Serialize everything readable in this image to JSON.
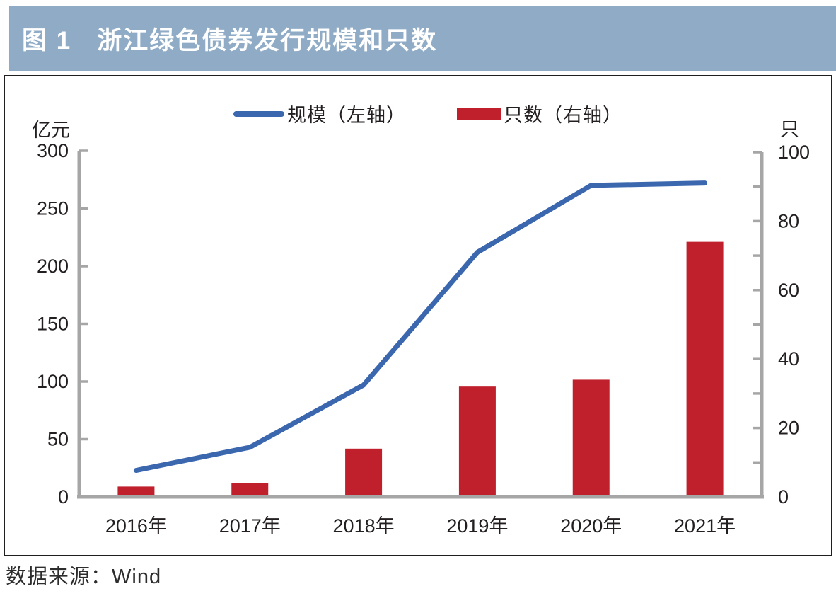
{
  "header": {
    "figure_label": "图 1",
    "title": "浙江绿色债券发行规模和只数"
  },
  "legend": {
    "items": [
      {
        "label": "规模（左轴）",
        "swatch": "line",
        "color": "#3b67af"
      },
      {
        "label": "只数（右轴）",
        "swatch": "bar",
        "color": "#c0202c"
      }
    ]
  },
  "chart_data": {
    "type": "line+bar dual-axis combo",
    "categories": [
      "2016年",
      "2017年",
      "2018年",
      "2019年",
      "2020年",
      "2021年"
    ],
    "series": [
      {
        "name": "规模（左轴）",
        "type": "line",
        "axis": "left",
        "color": "#3b67af",
        "values": [
          23,
          43,
          97,
          212,
          270,
          272
        ]
      },
      {
        "name": "只数（右轴）",
        "type": "bar",
        "axis": "right",
        "color": "#c0202c",
        "values": [
          3,
          4,
          14,
          32,
          34,
          74
        ]
      }
    ],
    "left_axis": {
      "unit": "亿元",
      "min": 0,
      "max": 300,
      "tick_step": 50,
      "label_step": 50
    },
    "right_axis": {
      "unit": "只",
      "min": 0,
      "max": 100,
      "tick_step": 10,
      "label_step": 20
    },
    "grid": false,
    "legend_position": "top-center",
    "axis_color": "#a6a6a6",
    "text_color": "#231f20"
  },
  "source": "数据来源：Wind",
  "colors": {
    "header_bg": "#8fabc6",
    "header_text": "#ffffff",
    "chart_border": "#1f1f1f",
    "background": "#ffffff"
  }
}
